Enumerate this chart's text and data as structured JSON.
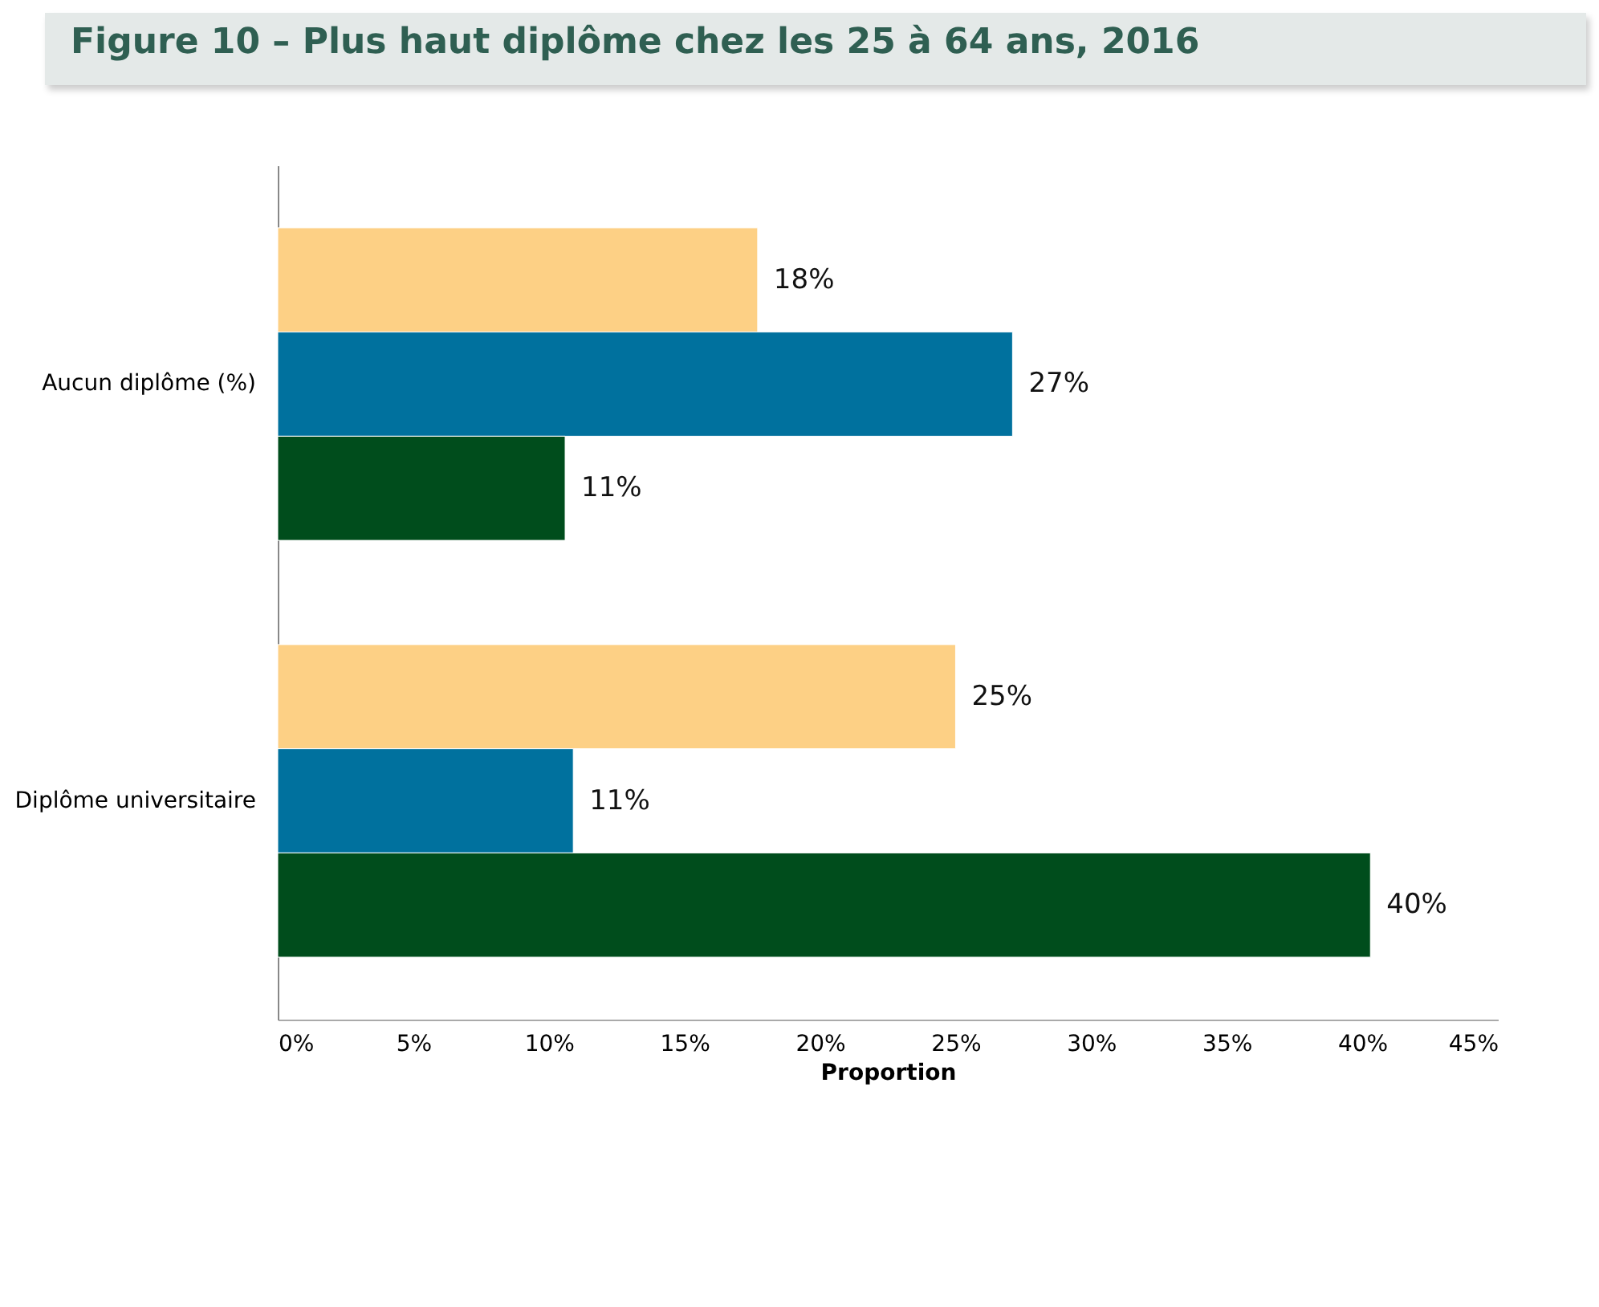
{
  "chart_data": {
    "type": "bar",
    "orientation": "horizontal",
    "title": "Figure 10 – Plus haut diplôme chez les 25 à 64 ans, 2016",
    "xlabel": "Proportion",
    "categories": [
      "Aucun diplôme (%)",
      "Diplôme universitaire"
    ],
    "series": [
      {
        "color": "#fdd085",
        "values": [
          17.7,
          25.0
        ],
        "value_labels": [
          "18%",
          "25%"
        ]
      },
      {
        "color": "#00719e",
        "values": [
          27.1,
          10.9
        ],
        "value_labels": [
          "27%",
          "11%"
        ]
      },
      {
        "color": "#004d1c",
        "values": [
          10.6,
          40.3
        ],
        "value_labels": [
          "11%",
          "40%"
        ]
      }
    ],
    "xlim": [
      0,
      45
    ],
    "xticks": [
      {
        "value": 0,
        "label": "0%"
      },
      {
        "value": 5,
        "label": "5%"
      },
      {
        "value": 10,
        "label": "10%"
      },
      {
        "value": 15,
        "label": "15%"
      },
      {
        "value": 20,
        "label": "20%"
      },
      {
        "value": 25,
        "label": "25%"
      },
      {
        "value": 30,
        "label": "30%"
      },
      {
        "value": 35,
        "label": "35%"
      },
      {
        "value": 40,
        "label": "40%"
      },
      {
        "value": 45,
        "label": "45%"
      }
    ],
    "legend": false
  }
}
